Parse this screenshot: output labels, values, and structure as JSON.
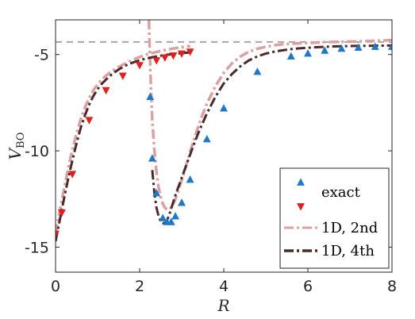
{
  "chart_data": {
    "type": "line",
    "xlabel": "R",
    "ylabel": "V",
    "ylabel_subscript": "BO",
    "xlim": [
      0,
      8
    ],
    "ylim": [
      -16.3,
      -3.2
    ],
    "xticks": [
      0,
      2,
      4,
      6,
      8
    ],
    "xtick_labels": [
      "0",
      "2",
      "4",
      "6",
      "8"
    ],
    "yticks": [
      -15,
      -10,
      -5
    ],
    "ytick_labels": [
      "-15",
      "-10",
      "-5"
    ],
    "grid": false,
    "legend_position": "bottom-right",
    "asymptote": {
      "y": -4.35,
      "style": "dashed",
      "color": "#a6a6a6"
    },
    "series": [
      {
        "name": "exact",
        "kind": "scatter",
        "marker": "triangle-up",
        "color": "#1f78c8",
        "x": [
          2.25,
          2.3,
          2.4,
          2.55,
          2.65,
          2.75,
          2.85,
          3.0,
          3.2,
          3.6,
          4.0,
          4.8,
          5.6,
          6.0,
          6.4,
          6.8,
          7.2,
          7.6,
          8.0
        ],
        "y": [
          -7.2,
          -10.4,
          -12.2,
          -13.5,
          -13.7,
          -13.7,
          -13.4,
          -12.7,
          -11.5,
          -9.4,
          -7.8,
          -5.9,
          -5.1,
          -4.95,
          -4.8,
          -4.7,
          -4.65,
          -4.6,
          -4.6
        ]
      },
      {
        "name": "",
        "kind": "scatter",
        "marker": "triangle-down",
        "color": "#e02020",
        "x": [
          0.0,
          0.15,
          0.4,
          0.8,
          1.2,
          1.6,
          2.0,
          2.4,
          2.6,
          2.8,
          3.0,
          3.2
        ],
        "y": [
          -14.3,
          -13.2,
          -11.2,
          -8.4,
          -6.85,
          -6.1,
          -5.55,
          -5.3,
          -5.15,
          -5.05,
          -4.95,
          -4.85
        ]
      },
      {
        "name": "1D, 2nd",
        "kind": "line",
        "dash": "dashdot",
        "color": "#dba0a0",
        "x": [
          0.0,
          0.1,
          0.2,
          0.3,
          0.4,
          0.5,
          0.6,
          0.7,
          0.8,
          0.9,
          1.0,
          1.1,
          1.2,
          1.3,
          1.4,
          1.5,
          1.6,
          1.7,
          1.8,
          1.9,
          2.0,
          2.1,
          2.2,
          2.3,
          2.4,
          2.5,
          2.6,
          2.7,
          2.8,
          2.9,
          3.0,
          3.1,
          3.2
        ],
        "y": [
          -14.3,
          -13.1,
          -12.0,
          -10.9,
          -9.95,
          -9.1,
          -8.35,
          -7.75,
          -7.25,
          -6.85,
          -6.55,
          -6.3,
          -6.1,
          -5.93,
          -5.78,
          -5.65,
          -5.53,
          -5.42,
          -5.32,
          -5.22,
          -5.13,
          -5.05,
          -4.98,
          -4.92,
          -4.87,
          -4.82,
          -4.77,
          -4.73,
          -4.69,
          -4.65,
          -4.62,
          -4.59,
          -4.56
        ],
        "x2": [
          2.22,
          2.24,
          2.27,
          2.3,
          2.35,
          2.4,
          2.45,
          2.5,
          2.55,
          2.6,
          2.65,
          2.7,
          2.75,
          2.8,
          2.85,
          2.9,
          2.95,
          3.0,
          3.1,
          3.2,
          3.3,
          3.4,
          3.5,
          3.6,
          3.8,
          4.0,
          4.2,
          4.4,
          4.6,
          4.8,
          5.0,
          5.2,
          5.4,
          5.6,
          5.8,
          6.0,
          6.2,
          6.4,
          6.6,
          6.8,
          7.0,
          7.2,
          7.4,
          7.6,
          7.8,
          8.0
        ],
        "y2": [
          -3.2,
          -4.8,
          -6.8,
          -8.4,
          -10.0,
          -11.1,
          -11.9,
          -12.4,
          -12.75,
          -12.95,
          -13.05,
          -13.05,
          -12.95,
          -12.75,
          -12.5,
          -12.2,
          -11.85,
          -11.5,
          -10.8,
          -10.05,
          -9.35,
          -8.7,
          -8.1,
          -7.55,
          -6.65,
          -5.95,
          -5.45,
          -5.1,
          -4.85,
          -4.7,
          -4.6,
          -4.52,
          -4.47,
          -4.44,
          -4.42,
          -4.4,
          -4.38,
          -4.36,
          -4.35,
          -4.34,
          -4.33,
          -4.32,
          -4.3,
          -4.29,
          -4.27,
          -4.25
        ]
      },
      {
        "name": "1D, 4th",
        "kind": "line",
        "dash": "dashdot",
        "color": "#4a2a2a",
        "x": [
          0.0,
          0.1,
          0.2,
          0.3,
          0.4,
          0.5,
          0.6,
          0.7,
          0.8,
          0.9,
          1.0,
          1.1,
          1.2,
          1.3,
          1.4,
          1.5,
          1.6,
          1.7,
          1.8,
          1.9,
          2.0,
          2.1,
          2.2,
          2.3,
          2.4,
          2.5,
          2.6,
          2.7,
          2.8,
          2.9,
          3.0,
          3.1,
          3.2
        ],
        "y": [
          -14.7,
          -13.6,
          -12.5,
          -11.45,
          -10.5,
          -9.6,
          -8.8,
          -8.15,
          -7.6,
          -7.15,
          -6.8,
          -6.52,
          -6.3,
          -6.1,
          -5.93,
          -5.78,
          -5.65,
          -5.54,
          -5.45,
          -5.37,
          -5.3,
          -5.24,
          -5.19,
          -5.14,
          -5.1,
          -5.06,
          -5.03,
          -5.0,
          -4.97,
          -4.95,
          -4.93,
          -4.91,
          -4.89
        ],
        "x2": [
          2.3,
          2.35,
          2.4,
          2.45,
          2.5,
          2.55,
          2.6,
          2.65,
          2.7,
          2.75,
          2.8,
          2.85,
          2.9,
          2.95,
          3.0,
          3.1,
          3.2,
          3.3,
          3.4,
          3.5,
          3.6,
          3.8,
          4.0,
          4.2,
          4.4,
          4.6,
          4.8,
          5.0,
          5.2,
          5.4,
          5.6,
          5.8,
          6.0,
          6.2,
          6.4,
          6.6,
          6.8,
          7.0,
          7.2,
          7.4,
          7.6,
          7.8,
          8.0
        ],
        "y2": [
          -11.0,
          -12.2,
          -12.95,
          -13.4,
          -13.65,
          -13.75,
          -13.75,
          -13.6,
          -13.35,
          -13.0,
          -12.65,
          -12.3,
          -12.0,
          -11.7,
          -11.4,
          -10.8,
          -10.2,
          -9.6,
          -9.05,
          -8.55,
          -8.05,
          -7.2,
          -6.5,
          -6.0,
          -5.6,
          -5.3,
          -5.1,
          -4.95,
          -4.85,
          -4.78,
          -4.72,
          -4.68,
          -4.65,
          -4.62,
          -4.6,
          -4.58,
          -4.57,
          -4.56,
          -4.55,
          -4.55,
          -4.54,
          -4.54,
          -4.53
        ]
      }
    ],
    "legend": {
      "entries": [
        {
          "label": "exact",
          "markers": [
            "triangle-up",
            "triangle-down"
          ]
        },
        {
          "label": "1D, 2nd",
          "line": true
        },
        {
          "label": "1D, 4th",
          "line": true
        }
      ]
    }
  }
}
